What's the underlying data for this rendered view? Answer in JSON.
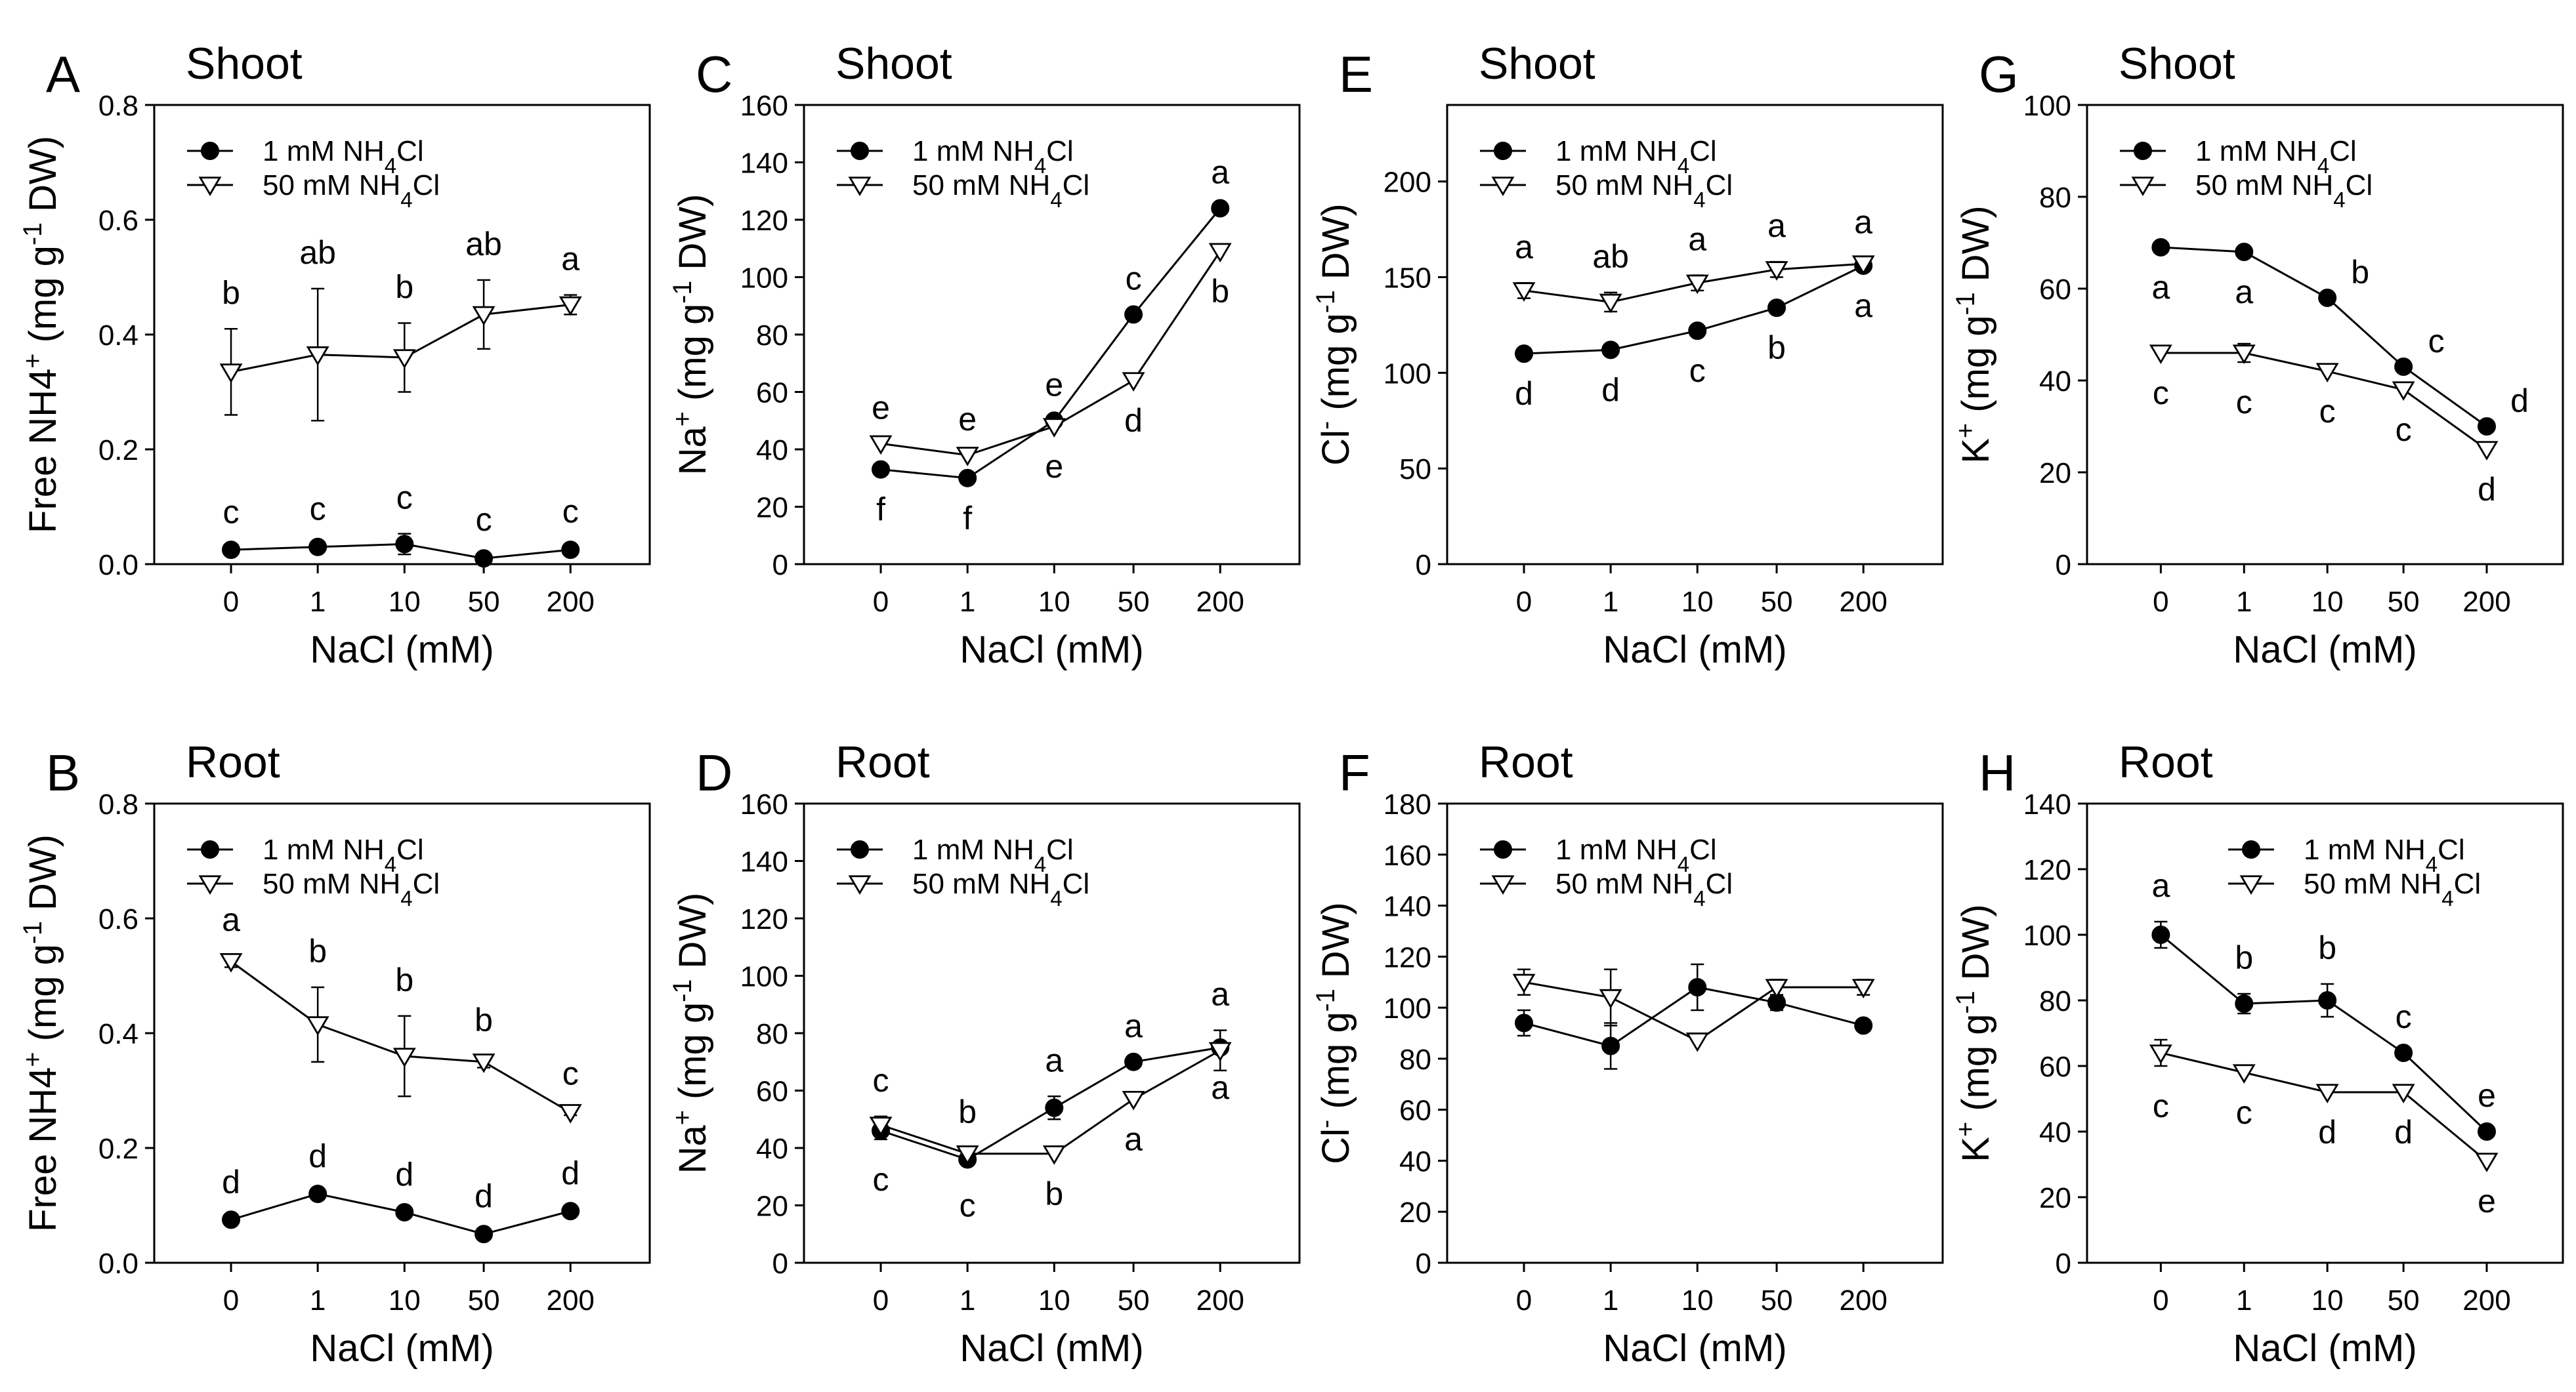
{
  "chart_data": [
    {
      "id": "A",
      "type": "line",
      "panel_label": "A",
      "title": "Shoot",
      "ylabel": "Free NH4+ (mg g-1 DW)",
      "xlabel": "NaCl (mM)",
      "categories": [
        "0",
        "1",
        "10",
        "50",
        "200"
      ],
      "ylim": [
        0,
        0.8
      ],
      "yticks": [
        "0.0",
        "0.2",
        "0.4",
        "0.6",
        "0.8"
      ],
      "legend": "top-left",
      "series": [
        {
          "name": "1 mM NH4Cl",
          "marker": "filled-circle",
          "values": [
            0.025,
            0.03,
            0.035,
            0.01,
            0.025
          ],
          "errors": [
            0.003,
            0.004,
            0.018,
            0.005,
            0.004
          ],
          "letters": [
            "c",
            "c",
            "c",
            "c",
            "c"
          ],
          "letter_pos": [
            "above",
            "above",
            "above",
            "above",
            "above"
          ]
        },
        {
          "name": "50 mM NH4Cl",
          "marker": "open-triangle",
          "values": [
            0.335,
            0.365,
            0.36,
            0.435,
            0.452
          ],
          "errors": [
            0.075,
            0.115,
            0.06,
            0.06,
            0.017
          ],
          "letters": [
            "b",
            "ab",
            "b",
            "ab",
            "a"
          ],
          "letter_pos": [
            "above",
            "above",
            "above",
            "above",
            "above"
          ]
        }
      ]
    },
    {
      "id": "B",
      "type": "line",
      "panel_label": "B",
      "title": "Root",
      "ylabel": "Free NH4+ (mg g-1 DW)",
      "xlabel": "NaCl (mM)",
      "categories": [
        "0",
        "1",
        "10",
        "50",
        "200"
      ],
      "ylim": [
        0,
        0.8
      ],
      "yticks": [
        "0.0",
        "0.2",
        "0.4",
        "0.6",
        "0.8"
      ],
      "legend": "top-left",
      "series": [
        {
          "name": "1 mM NH4Cl",
          "marker": "filled-circle",
          "values": [
            0.075,
            0.12,
            0.088,
            0.05,
            0.09
          ],
          "errors": [
            0.003,
            0.003,
            0.003,
            0.003,
            0.003
          ],
          "letters": [
            "d",
            "d",
            "d",
            "d",
            "d"
          ],
          "letter_pos": [
            "above",
            "above",
            "above",
            "above",
            "above"
          ]
        },
        {
          "name": "50 mM NH4Cl",
          "marker": "open-triangle",
          "values": [
            0.525,
            0.415,
            0.36,
            0.35,
            0.262
          ],
          "errors": [
            0.01,
            0.065,
            0.07,
            0.01,
            0.005
          ],
          "letters": [
            "a",
            "b",
            "b",
            "b",
            "c"
          ],
          "letter_pos": [
            "above",
            "above",
            "above",
            "above",
            "above"
          ]
        }
      ]
    },
    {
      "id": "C",
      "type": "line",
      "panel_label": "C",
      "title": "Shoot",
      "ylabel": "Na+ (mg g-1 DW)",
      "xlabel": "NaCl (mM)",
      "categories": [
        "0",
        "1",
        "10",
        "50",
        "200"
      ],
      "ylim": [
        0,
        160
      ],
      "yticks": [
        "0",
        "20",
        "40",
        "60",
        "80",
        "100",
        "120",
        "140",
        "160"
      ],
      "legend": "top-left",
      "series": [
        {
          "name": "1 mM NH4Cl",
          "marker": "filled-circle",
          "values": [
            33,
            30,
            50,
            87,
            124
          ],
          "errors": [
            0,
            0,
            0,
            0,
            0
          ],
          "letters": [
            "f",
            "f",
            "e",
            "c",
            "a"
          ],
          "letter_pos": [
            "below",
            "below",
            "above",
            "above",
            "above"
          ]
        },
        {
          "name": "50 mM NH4Cl",
          "marker": "open-triangle",
          "values": [
            42,
            38,
            48,
            64,
            109
          ],
          "errors": [
            0,
            0,
            0,
            0,
            0
          ],
          "letters": [
            "e",
            "e",
            "e",
            "d",
            "b"
          ],
          "letter_pos": [
            "above",
            "above",
            "below",
            "below",
            "below"
          ]
        }
      ]
    },
    {
      "id": "D",
      "type": "line",
      "panel_label": "D",
      "title": "Root",
      "ylabel": "Na+ (mg g-1 DW)",
      "xlabel": "NaCl (mM)",
      "categories": [
        "0",
        "1",
        "10",
        "50",
        "200"
      ],
      "ylim": [
        0,
        160
      ],
      "yticks": [
        "0",
        "20",
        "40",
        "60",
        "80",
        "100",
        "120",
        "140",
        "160"
      ],
      "legend": "top-left",
      "series": [
        {
          "name": "1 mM NH4Cl",
          "marker": "filled-circle",
          "values": [
            46,
            36,
            54,
            70,
            75
          ],
          "errors": [
            3,
            2,
            4,
            0,
            0
          ],
          "letters": [
            "c",
            "c",
            "a",
            "a",
            "a"
          ],
          "letter_pos": [
            "below",
            "below",
            "above",
            "above",
            "below"
          ]
        },
        {
          "name": "50 mM NH4Cl",
          "marker": "open-triangle",
          "values": [
            48,
            38,
            38,
            57,
            74
          ],
          "errors": [
            3,
            2,
            0,
            0,
            7
          ],
          "letters": [
            "c",
            "b",
            "b",
            "a",
            "a"
          ],
          "letter_pos": [
            "above",
            "above",
            "below",
            "below",
            "above"
          ]
        }
      ]
    },
    {
      "id": "E",
      "type": "line",
      "panel_label": "E",
      "title": "Shoot",
      "ylabel": "Cl- (mg g-1 DW)",
      "xlabel": "NaCl (mM)",
      "categories": [
        "0",
        "1",
        "10",
        "50",
        "200"
      ],
      "ylim": [
        0,
        240
      ],
      "yticks": [
        "0",
        "50",
        "100",
        "150",
        "200"
      ],
      "legend": "top-left",
      "series": [
        {
          "name": "1 mM NH4Cl",
          "marker": "filled-circle",
          "values": [
            110,
            112,
            122,
            134,
            156
          ],
          "errors": [
            0,
            0,
            0,
            0,
            0
          ],
          "letters": [
            "d",
            "d",
            "c",
            "b",
            "a"
          ],
          "letter_pos": [
            "below",
            "below",
            "below",
            "below",
            "below"
          ]
        },
        {
          "name": "50 mM NH4Cl",
          "marker": "open-triangle",
          "values": [
            143,
            137,
            147,
            154,
            157
          ],
          "errors": [
            4,
            5,
            4,
            4,
            3
          ],
          "letters": [
            "a",
            "ab",
            "a",
            "a",
            "a"
          ],
          "letter_pos": [
            "above",
            "above",
            "above",
            "above",
            "above"
          ]
        }
      ]
    },
    {
      "id": "F",
      "type": "line",
      "panel_label": "F",
      "title": "Root",
      "ylabel": "Cl- (mg g-1 DW)",
      "xlabel": "NaCl (mM)",
      "categories": [
        "0",
        "1",
        "10",
        "50",
        "200"
      ],
      "ylim": [
        0,
        180
      ],
      "yticks": [
        "0",
        "20",
        "40",
        "60",
        "80",
        "100",
        "120",
        "140",
        "160",
        "180"
      ],
      "legend": "top-left",
      "series": [
        {
          "name": "1 mM NH4Cl",
          "marker": "filled-circle",
          "values": [
            94,
            85,
            108,
            102,
            93
          ],
          "errors": [
            5,
            9,
            9,
            3,
            0
          ],
          "letters": [],
          "letter_pos": []
        },
        {
          "name": "50 mM NH4Cl",
          "marker": "open-triangle",
          "values": [
            110,
            104,
            87,
            108,
            108
          ],
          "errors": [
            5,
            11,
            0,
            3,
            3
          ],
          "letters": [],
          "letter_pos": []
        }
      ]
    },
    {
      "id": "G",
      "type": "line",
      "panel_label": "G",
      "title": "Shoot",
      "ylabel": "K+ (mg g-1 DW)",
      "xlabel": "NaCl (mM)",
      "categories": [
        "0",
        "1",
        "10",
        "50",
        "200"
      ],
      "ylim": [
        0,
        100
      ],
      "yticks": [
        "0",
        "20",
        "40",
        "60",
        "80",
        "100"
      ],
      "legend": "top-left",
      "series": [
        {
          "name": "1 mM NH4Cl",
          "marker": "filled-circle",
          "values": [
            69,
            68,
            58,
            43,
            30
          ],
          "errors": [
            0,
            0,
            0,
            0,
            0
          ],
          "letters": [
            "a",
            "a",
            "b",
            "c",
            "d"
          ],
          "letter_pos": [
            "below",
            "below",
            "right",
            "right",
            "right"
          ]
        },
        {
          "name": "50 mM NH4Cl",
          "marker": "open-triangle",
          "values": [
            46,
            46,
            42,
            38,
            25
          ],
          "errors": [
            0,
            2,
            0,
            0,
            0
          ],
          "letters": [
            "c",
            "c",
            "c",
            "c",
            "d"
          ],
          "letter_pos": [
            "below",
            "below",
            "below",
            "below",
            "below"
          ]
        }
      ]
    },
    {
      "id": "H",
      "type": "line",
      "panel_label": "H",
      "title": "Root",
      "ylabel": "K+ (mg g-1 DW)",
      "xlabel": "NaCl (mM)",
      "categories": [
        "0",
        "1",
        "10",
        "50",
        "200"
      ],
      "ylim": [
        0,
        140
      ],
      "yticks": [
        "0",
        "20",
        "40",
        "60",
        "80",
        "100",
        "120",
        "140"
      ],
      "legend": "top-right",
      "series": [
        {
          "name": "1 mM NH4Cl",
          "marker": "filled-circle",
          "values": [
            100,
            79,
            80,
            64,
            40
          ],
          "errors": [
            4,
            3,
            5,
            0,
            0
          ],
          "letters": [
            "a",
            "b",
            "b",
            "c",
            "e"
          ],
          "letter_pos": [
            "above",
            "above",
            "above",
            "above",
            "above"
          ]
        },
        {
          "name": "50 mM NH4Cl",
          "marker": "open-triangle",
          "values": [
            64,
            58,
            52,
            52,
            31
          ],
          "errors": [
            4,
            0,
            0,
            0,
            0
          ],
          "letters": [
            "c",
            "c",
            "d",
            "d",
            "e"
          ],
          "letter_pos": [
            "below",
            "below",
            "below",
            "below",
            "below"
          ]
        }
      ]
    }
  ]
}
